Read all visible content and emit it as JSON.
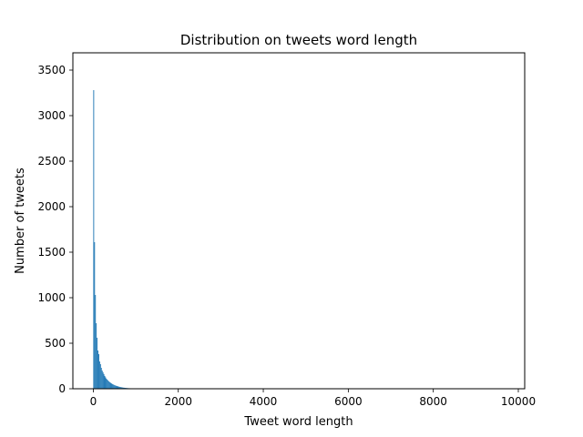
{
  "chart_data": {
    "type": "bar",
    "title": "Distribution on tweets word length",
    "xlabel": "Tweet word length",
    "ylabel": "Number of tweets",
    "xlim": [
      -480,
      10150
    ],
    "ylim": [
      0,
      3690
    ],
    "xticks": [
      0,
      2000,
      4000,
      6000,
      8000,
      10000
    ],
    "yticks": [
      0,
      500,
      1000,
      1500,
      2000,
      2500,
      3000,
      3500
    ],
    "grid": false,
    "legend": "none",
    "bar_color": "#1f77b4",
    "bin_width": 20,
    "series": [
      {
        "x": [
          0,
          20,
          40,
          60,
          80,
          100,
          120,
          140,
          160,
          180,
          200,
          220,
          240,
          260,
          280,
          300,
          320,
          340,
          360,
          380,
          400,
          420,
          440,
          460,
          480,
          500,
          520,
          540,
          560,
          580,
          600,
          620,
          640,
          660,
          680,
          700,
          720,
          740,
          760,
          780,
          800,
          820,
          840,
          860,
          880,
          900,
          920,
          940,
          960,
          980,
          1000,
          1040,
          1080,
          1120,
          1160,
          1200,
          1300,
          1400,
          1600,
          1800,
          2200
        ],
        "values": [
          3280,
          1610,
          1030,
          720,
          560,
          420,
          380,
          300,
          270,
          230,
          200,
          180,
          160,
          140,
          125,
          110,
          100,
          90,
          80,
          72,
          65,
          58,
          52,
          47,
          42,
          38,
          34,
          31,
          28,
          25,
          22,
          20,
          18,
          16,
          14,
          12,
          11,
          10,
          9,
          8,
          7,
          6,
          6,
          5,
          5,
          4,
          4,
          3,
          3,
          3,
          2,
          2,
          2,
          2,
          1,
          1,
          1,
          1,
          1,
          1,
          1
        ]
      }
    ],
    "ytick_labels": [
      "0",
      "500",
      "1000",
      "1500",
      "2000",
      "2500",
      "3000",
      "3500"
    ],
    "xtick_labels": [
      "0",
      "2000",
      "4000",
      "6000",
      "8000",
      "10000"
    ]
  }
}
